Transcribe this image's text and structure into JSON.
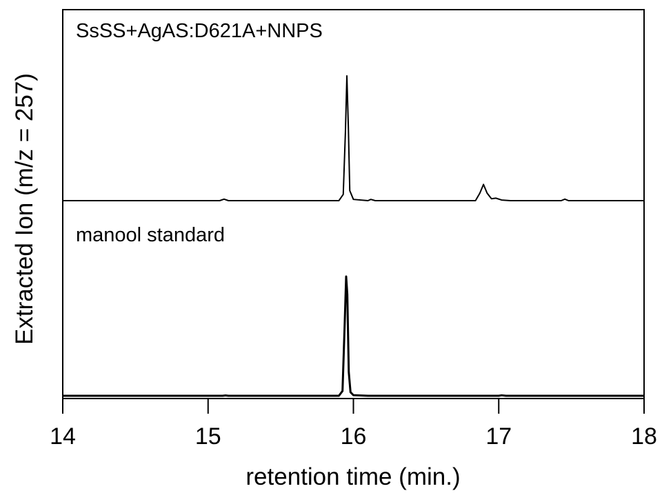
{
  "chart_data": {
    "type": "line",
    "xlabel": "retention time (min.)",
    "ylabel": "Extracted Ion (m/z = 257)",
    "xlim": [
      14,
      18
    ],
    "xticks": [
      "14",
      "15",
      "16",
      "17",
      "18"
    ],
    "grid": false,
    "y_ticks_shown": false,
    "series": [
      {
        "name": "SsSS+AgAS:D621A+NNPS",
        "points": [
          [
            14.0,
            0
          ],
          [
            15.08,
            0
          ],
          [
            15.11,
            0.012
          ],
          [
            15.14,
            0
          ],
          [
            15.9,
            0
          ],
          [
            15.93,
            0.05
          ],
          [
            15.945,
            0.55
          ],
          [
            15.955,
            1.0
          ],
          [
            15.965,
            0.6
          ],
          [
            15.975,
            0.08
          ],
          [
            16.0,
            0.01
          ],
          [
            16.1,
            0
          ],
          [
            16.12,
            0.01
          ],
          [
            16.15,
            0
          ],
          [
            16.84,
            0
          ],
          [
            16.87,
            0.06
          ],
          [
            16.895,
            0.13
          ],
          [
            16.92,
            0.06
          ],
          [
            16.95,
            0.015
          ],
          [
            16.98,
            0.02
          ],
          [
            17.02,
            0.005
          ],
          [
            17.08,
            0
          ],
          [
            17.43,
            0
          ],
          [
            17.455,
            0.012
          ],
          [
            17.48,
            0
          ],
          [
            18.0,
            0
          ]
        ]
      },
      {
        "name": "manool standard",
        "points": [
          [
            14.0,
            0
          ],
          [
            15.1,
            0
          ],
          [
            15.12,
            0.003
          ],
          [
            15.14,
            0
          ],
          [
            15.9,
            0
          ],
          [
            15.925,
            0.04
          ],
          [
            15.94,
            0.6
          ],
          [
            15.95,
            1.0
          ],
          [
            15.958,
            0.85
          ],
          [
            15.968,
            0.2
          ],
          [
            15.98,
            0.03
          ],
          [
            16.0,
            0.005
          ],
          [
            16.1,
            0
          ],
          [
            17.0,
            0
          ],
          [
            17.02,
            0.004
          ],
          [
            17.05,
            0
          ],
          [
            18.0,
            0
          ]
        ]
      }
    ]
  }
}
